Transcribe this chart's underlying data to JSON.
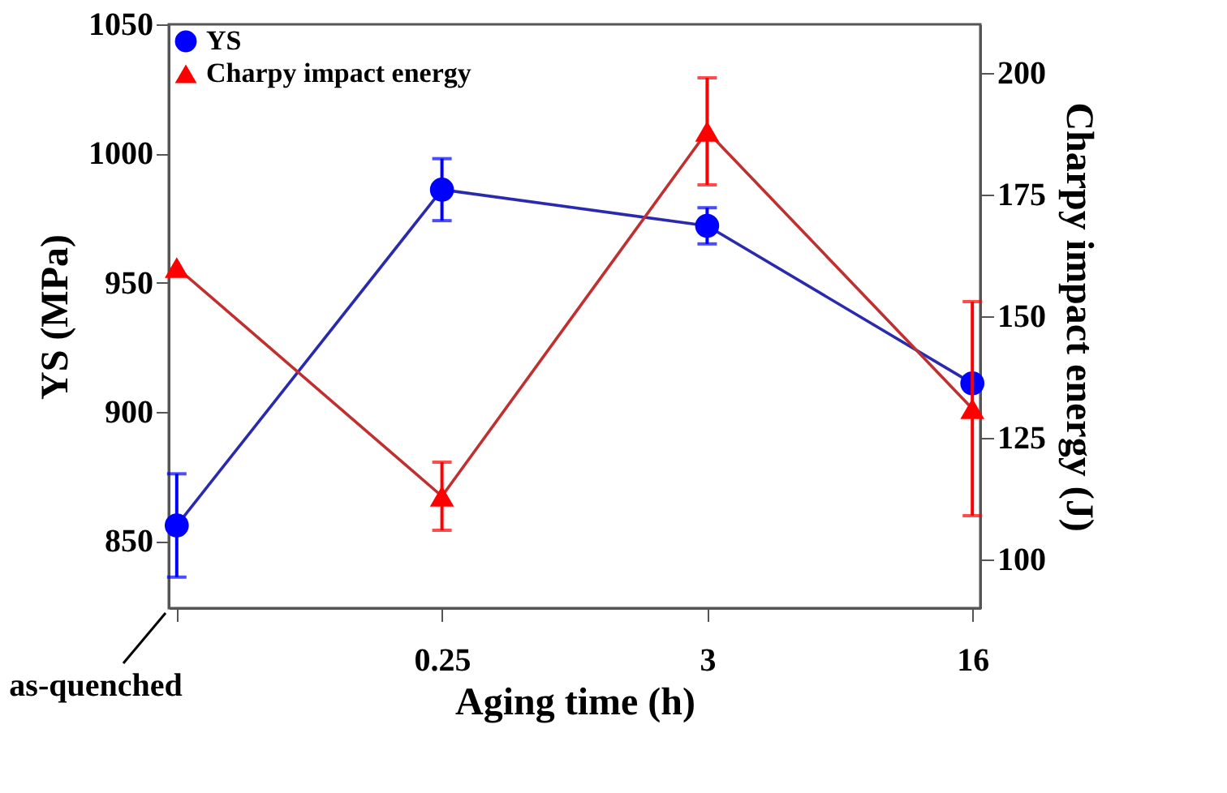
{
  "chart_data": {
    "type": "line",
    "xlabel": "Aging time (h)",
    "ylabel": "YS (MPa)",
    "y2label": "Charpy impact energy (J)",
    "categories": [
      null,
      "0.25",
      "3",
      "16"
    ],
    "series": [
      {
        "name": "YS",
        "color": "#0000ff",
        "marker": "circle",
        "values": [
          856,
          986,
          972,
          911
        ],
        "errors": [
          20,
          12,
          7,
          null
        ]
      },
      {
        "name": "Charpy impact energy",
        "color": "#ff0000",
        "marker": "triangle",
        "axis": "y2",
        "values": [
          160,
          113,
          188,
          131
        ],
        "errors": [
          null,
          7,
          11,
          22
        ]
      }
    ],
    "ylim": [
      824,
      1050
    ],
    "yticks": [
      850,
      900,
      950,
      1000,
      1050
    ],
    "y2lim": [
      90,
      210
    ],
    "y2ticks": [
      100,
      125,
      150,
      175,
      200
    ],
    "annotations": [
      "as-quenched"
    ],
    "legend": "top left",
    "grid": false
  }
}
